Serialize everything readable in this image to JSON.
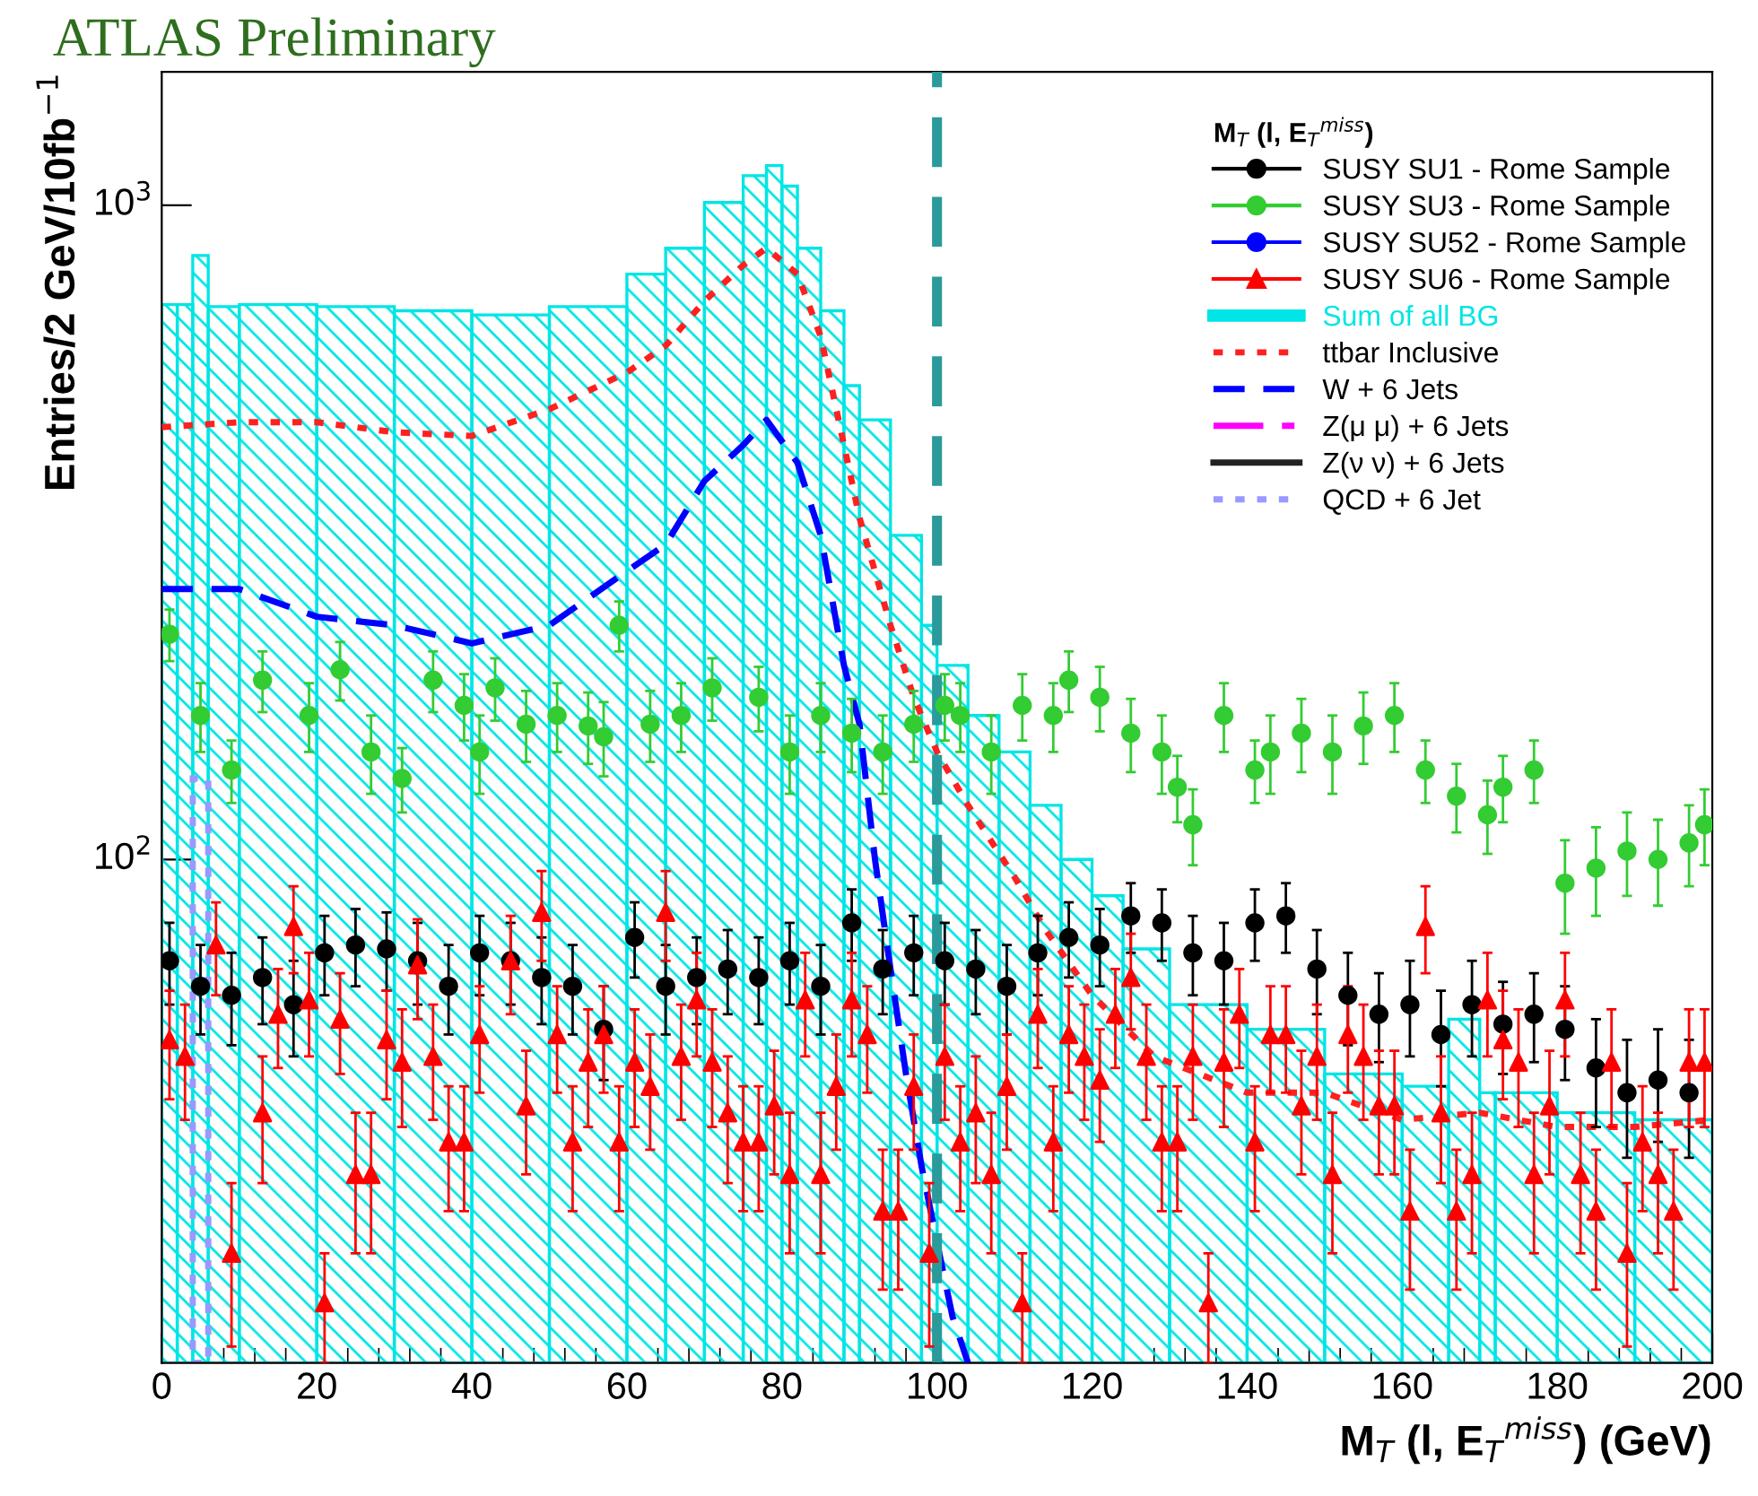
{
  "chart_data": {
    "type": "scatter",
    "title": "ATLAS Preliminary",
    "ylabel": "Entries/2 GeV/10fb$^{−1}$",
    "xlabel": "M$_{T}$ (l, E$_{T}$$^{miss}$) (GeV)",
    "legend_title": "M$_{T}$ (l, E$_{T}$$^{miss}$)",
    "xlim": [
      0,
      200
    ],
    "xticks": [
      0,
      20,
      40,
      60,
      80,
      100,
      120,
      140,
      160,
      180,
      200
    ],
    "ylim": [
      17,
      1600
    ],
    "yticks": [
      {
        "value": 100,
        "label": "10$^{2}$"
      },
      {
        "value": 1000,
        "label": "10$^{3}$"
      }
    ],
    "log": "y",
    "grid": false,
    "legend": "top right",
    "ref_lines": [
      {
        "axis": "x",
        "value": 100,
        "color": "#2a9a9a",
        "line_style": "dashed"
      }
    ],
    "series": [
      {
        "name": "SUSY SU1 - Rome Sample",
        "color": "#000000",
        "marker": "circle",
        "x": [
          1,
          5,
          9,
          13,
          17,
          21,
          25,
          29,
          33,
          37,
          41,
          45,
          49,
          53,
          57,
          61,
          65,
          69,
          73,
          77,
          81,
          85,
          89,
          93,
          97,
          101,
          105,
          109,
          113,
          117,
          121,
          125,
          129,
          133,
          137,
          141,
          145,
          149,
          153,
          157,
          161,
          165,
          169,
          173,
          177,
          181,
          185,
          189,
          193,
          197
        ],
        "values": [
          70,
          64,
          62,
          66,
          60,
          72,
          74,
          73,
          70,
          64,
          72,
          70,
          66,
          64,
          55,
          76,
          64,
          66,
          68,
          66,
          70,
          64,
          80,
          68,
          72,
          70,
          68,
          64,
          72,
          76,
          74,
          82,
          80,
          72,
          70,
          80,
          82,
          68,
          62,
          58,
          60,
          54,
          60,
          56,
          58,
          55,
          48,
          44,
          46,
          44
        ],
        "errors": [
          10,
          10,
          10,
          10,
          10,
          10,
          10,
          10,
          10,
          10,
          10,
          10,
          10,
          10,
          9,
          10,
          10,
          10,
          10,
          10,
          10,
          10,
          10,
          10,
          10,
          10,
          10,
          10,
          10,
          10,
          10,
          10,
          10,
          10,
          10,
          10,
          10,
          10,
          10,
          9,
          10,
          9,
          10,
          9,
          9,
          9,
          9,
          9,
          9,
          9
        ]
      },
      {
        "name": "SUSY SU3 - Rome Sample",
        "color": "#33cc33",
        "marker": "circle",
        "x": [
          1,
          5,
          9,
          13,
          19,
          23,
          27,
          31,
          35,
          39,
          41,
          43,
          47,
          51,
          55,
          57,
          59,
          63,
          67,
          71,
          77,
          81,
          85,
          89,
          93,
          97,
          101,
          103,
          107,
          111,
          115,
          117,
          121,
          125,
          129,
          131,
          133,
          137,
          141,
          143,
          147,
          151,
          155,
          159,
          163,
          167,
          171,
          173,
          177,
          181,
          185,
          189,
          193,
          197,
          199
        ],
        "values": [
          221,
          166,
          137,
          188,
          166,
          195,
          146,
          133,
          188,
          172,
          146,
          183,
          161,
          166,
          160,
          154,
          228,
          161,
          166,
          183,
          177,
          146,
          166,
          156,
          146,
          161,
          172,
          166,
          146,
          172,
          166,
          188,
          177,
          156,
          146,
          129,
          113,
          166,
          137,
          146,
          156,
          146,
          160,
          166,
          137,
          125,
          117,
          129,
          137,
          92,
          97,
          103,
          100,
          106,
          113
        ],
        "errors": [
          20,
          20,
          15,
          20,
          20,
          20,
          20,
          15,
          20,
          20,
          20,
          20,
          20,
          20,
          20,
          20,
          20,
          20,
          20,
          20,
          20,
          20,
          20,
          20,
          20,
          20,
          20,
          20,
          20,
          20,
          20,
          20,
          20,
          20,
          20,
          15,
          15,
          20,
          15,
          20,
          20,
          20,
          20,
          20,
          15,
          15,
          15,
          15,
          15,
          15,
          15,
          15,
          15,
          15,
          15
        ]
      },
      {
        "name": "SUSY SU52 - Rome Sample",
        "color": "#0000ff",
        "marker": "circle"
      },
      {
        "name": "SUSY SU6 - Rome Sample",
        "color": "#ff0000",
        "marker": "triangle",
        "x": [
          1,
          3,
          7,
          9,
          13,
          15,
          17,
          19,
          21,
          23,
          25,
          27,
          29,
          31,
          33,
          35,
          37,
          39,
          41,
          45,
          47,
          49,
          51,
          53,
          55,
          57,
          59,
          61,
          63,
          65,
          67,
          69,
          71,
          73,
          75,
          77,
          79,
          81,
          83,
          85,
          87,
          89,
          91,
          93,
          95,
          97,
          99,
          101,
          103,
          105,
          107,
          109,
          111,
          113,
          115,
          117,
          119,
          121,
          123,
          125,
          127,
          129,
          131,
          133,
          135,
          137,
          139,
          141,
          143,
          145,
          147,
          149,
          151,
          153,
          155,
          157,
          159,
          161,
          163,
          165,
          167,
          169,
          171,
          173,
          175,
          177,
          179,
          181,
          183,
          185,
          187,
          189,
          191,
          193,
          195,
          197,
          199
        ],
        "values": [
          53,
          50,
          74,
          25,
          41,
          58,
          79,
          61,
          21,
          57,
          33,
          33,
          53,
          49,
          69,
          50,
          37,
          37,
          54,
          70,
          42,
          83,
          54,
          37,
          49,
          54,
          37,
          49,
          45,
          83,
          50,
          61,
          49,
          41,
          37,
          37,
          42,
          33,
          61,
          33,
          45,
          61,
          54,
          29,
          29,
          45,
          25,
          50,
          37,
          41,
          33,
          45,
          21,
          58,
          37,
          54,
          50,
          46,
          58,
          66,
          50,
          37,
          37,
          50,
          21,
          49,
          58,
          37,
          54,
          54,
          42,
          50,
          33,
          54,
          50,
          42,
          42,
          29,
          79,
          41,
          29,
          33,
          61,
          53,
          49,
          33,
          42,
          61,
          33,
          29,
          49,
          25,
          37,
          33,
          29,
          49,
          49
        ],
        "errors": [
          10,
          10,
          12,
          7,
          9,
          10,
          12,
          11,
          4,
          10,
          8,
          8,
          10,
          10,
          12,
          10,
          8,
          8,
          10,
          12,
          9,
          13,
          10,
          8,
          10,
          10,
          8,
          10,
          9,
          13,
          10,
          11,
          10,
          9,
          8,
          8,
          9,
          8,
          11,
          8,
          9,
          11,
          10,
          7,
          7,
          9,
          7,
          10,
          8,
          9,
          8,
          9,
          4,
          10,
          8,
          10,
          10,
          9,
          10,
          11,
          10,
          8,
          8,
          10,
          4,
          10,
          10,
          8,
          10,
          10,
          9,
          10,
          8,
          10,
          10,
          9,
          9,
          7,
          12,
          9,
          7,
          8,
          11,
          10,
          10,
          8,
          9,
          11,
          8,
          7,
          10,
          7,
          8,
          8,
          7,
          10,
          10
        ]
      },
      {
        "name": "Sum of all BG",
        "type": "histogram",
        "color": "#00e5e5",
        "line_style": "solid",
        "bins": [
          0,
          2,
          4,
          6,
          10,
          20,
          30,
          40,
          50,
          60,
          65,
          70,
          75,
          78,
          80,
          82,
          85,
          88,
          90,
          94,
          98,
          100,
          104,
          108,
          112,
          116,
          120,
          124,
          130,
          140,
          150,
          160,
          166,
          170,
          172,
          180,
          190,
          200
        ],
        "values": [
          705,
          705,
          838,
          700,
          705,
          700,
          690,
          680,
          700,
          785,
          860,
          1010,
          1110,
          1150,
          1070,
          860,
          690,
          530,
          470,
          313,
          228,
          198,
          166,
          146,
          121,
          100,
          88,
          73,
          60,
          55,
          47,
          45,
          57,
          44,
          44,
          41,
          40
        ]
      },
      {
        "name": "ttbar Inclusive",
        "type": "line",
        "color": "#ff2020",
        "line_style": "dotted",
        "x": [
          0,
          10,
          20,
          30,
          40,
          50,
          60,
          65,
          70,
          75,
          78,
          82,
          85,
          88,
          90,
          94,
          97,
          100,
          104,
          110,
          114,
          120,
          128,
          140,
          150,
          160,
          170,
          180,
          190,
          200
        ],
        "values": [
          458,
          466,
          466,
          450,
          444,
          488,
          555,
          610,
          714,
          810,
          860,
          785,
          630,
          430,
          333,
          228,
          177,
          146,
          121,
          94,
          78,
          62,
          50,
          44,
          44,
          40,
          41,
          39,
          39,
          40
        ]
      },
      {
        "name": "W + 6 Jets",
        "type": "line",
        "color": "#0000ff",
        "line_style": "dashed",
        "x": [
          0,
          10,
          20,
          30,
          40,
          50,
          60,
          65,
          70,
          75,
          78,
          82,
          85,
          88,
          90,
          92,
          94,
          96,
          98,
          100,
          102,
          104
        ],
        "values": [
          259,
          259,
          235,
          228,
          214,
          228,
          276,
          303,
          379,
          430,
          470,
          404,
          313,
          198,
          161,
          100,
          68,
          47,
          34,
          26,
          20,
          17
        ]
      },
      {
        "name": "Z(μ μ) + 6 Jets",
        "type": "line",
        "color": "#ff00ff",
        "line_style": "dashdot"
      },
      {
        "name": "Z(ν ν) + 6 Jets",
        "type": "line",
        "color": "#222222",
        "line_style": "solid"
      },
      {
        "name": "QCD + 6 Jet",
        "type": "histogram",
        "color": "#9999ff",
        "line_style": "dotted",
        "bins": [
          4,
          6
        ],
        "values": [
          133
        ]
      }
    ]
  }
}
